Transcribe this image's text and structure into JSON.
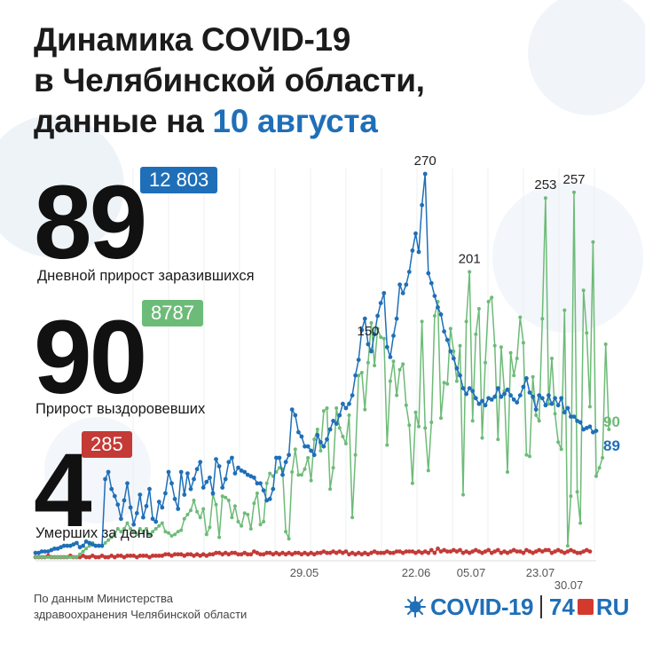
{
  "title": {
    "line1": "Динамика COVID-19",
    "line2": "в Челябинской области,",
    "line3_prefix": "данные на ",
    "line3_date": "10 августа"
  },
  "stats": {
    "infected": {
      "value": "89",
      "total": "12 803",
      "label": "Дневной прирост заразившихся"
    },
    "recovered": {
      "value": "90",
      "total": "8787",
      "label": "Прирост выздоровевших"
    },
    "deaths": {
      "value": "4",
      "total": "285",
      "label": "Умерших за день"
    }
  },
  "footer": {
    "source_line1": "По данным Министерства",
    "source_line2": "здравоохранения Челябинской области",
    "logo_covid": "COVID-19",
    "logo_74": "74",
    "logo_ru": "RU"
  },
  "colors": {
    "infected": "#1f6fb8",
    "recovered": "#6dbb78",
    "deaths": "#c43a36",
    "title_accent": "#1f6fb8"
  },
  "chart_data": {
    "type": "line",
    "title": "",
    "xlabel": "",
    "ylabel": "",
    "ylim": [
      0,
      280
    ],
    "x_ticks": [
      "29.05",
      "22.06",
      "05.07",
      "23.07",
      "30.07"
    ],
    "grid": "vertical",
    "peak_labels": [
      {
        "series": "infected",
        "text": "270"
      },
      {
        "series": "infected",
        "text": "150"
      },
      {
        "series": "recovered",
        "text": "201"
      },
      {
        "series": "recovered",
        "text": "253"
      },
      {
        "series": "recovered",
        "text": "257"
      }
    ],
    "end_labels": {
      "recovered": "90",
      "infected": "89"
    },
    "series": [
      {
        "key": "infected",
        "values": [
          3,
          3,
          4,
          4,
          4,
          5,
          6,
          6,
          7,
          8,
          8,
          8,
          9,
          10,
          7,
          8,
          11,
          10,
          9,
          8,
          8,
          8,
          55,
          60,
          48,
          43,
          37,
          27,
          40,
          52,
          35,
          23,
          31,
          44,
          28,
          36,
          48,
          27,
          25,
          39,
          35,
          45,
          60,
          52,
          41,
          34,
          60,
          44,
          59,
          48,
          55,
          62,
          67,
          49,
          53,
          56,
          45,
          69,
          64,
          49,
          55,
          67,
          70,
          59,
          63,
          61,
          60,
          58,
          57,
          56,
          52,
          52,
          47,
          40,
          41,
          48,
          70,
          70,
          58,
          67,
          72,
          104,
          100,
          88,
          85,
          78,
          78,
          75,
          72,
          86,
          81,
          78,
          83,
          90,
          96,
          94,
          100,
          108,
          105,
          108,
          114,
          128,
          139,
          160,
          168,
          150,
          145,
          157,
          170,
          179,
          186,
          148,
          141,
          156,
          168,
          192,
          186,
          192,
          201,
          216,
          228,
          215,
          248,
          270,
          200,
          193,
          184,
          176,
          171,
          159,
          153,
          145,
          140,
          133,
          128,
          119,
          115,
          119,
          117,
          112,
          108,
          110,
          107,
          112,
          111,
          113,
          119,
          113,
          115,
          118,
          114,
          111,
          109,
          114,
          120,
          126,
          116,
          113,
          104,
          114,
          112,
          107,
          114,
          108,
          112,
          107,
          112,
          102,
          105,
          99,
          99,
          96,
          95,
          90,
          91,
          92,
          88,
          89
        ]
      },
      {
        "key": "recovered",
        "values": [
          0,
          0,
          0,
          0,
          0,
          0,
          0,
          0,
          0,
          0,
          0,
          0,
          0,
          0,
          2,
          4,
          6,
          8,
          10,
          8,
          8,
          8,
          10,
          12,
          14,
          16,
          20,
          18,
          20,
          24,
          20,
          18,
          16,
          20,
          18,
          20,
          16,
          18,
          20,
          22,
          24,
          18,
          17,
          15,
          16,
          18,
          19,
          27,
          30,
          33,
          40,
          32,
          28,
          34,
          16,
          21,
          44,
          37,
          14,
          43,
          42,
          40,
          28,
          36,
          25,
          22,
          31,
          30,
          20,
          38,
          45,
          23,
          25,
          52,
          59,
          57,
          60,
          63,
          62,
          18,
          13,
          60,
          76,
          58,
          58,
          62,
          70,
          54,
          83,
          90,
          75,
          103,
          105,
          48,
          63,
          105,
          91,
          85,
          80,
          100,
          28,
          72,
          128,
          130,
          104,
          137,
          165,
          135,
          161,
          155,
          154,
          79,
          124,
          138,
          114,
          132,
          136,
          107,
          93,
          52,
          102,
          92,
          166,
          91,
          61,
          95,
          170,
          180,
          98,
          123,
          122,
          161,
          145,
          124,
          149,
          44,
          166,
          201,
          96,
          157,
          175,
          84,
          137,
          180,
          183,
          149,
          83,
          148,
          117,
          60,
          144,
          128,
          140,
          169,
          151,
          72,
          71,
          127,
          100,
          96,
          168,
          253,
          108,
          140,
          101,
          81,
          76,
          174,
          8,
          43,
          257,
          46,
          24,
          188,
          158,
          106,
          222,
          57,
          63,
          70,
          150,
          90
        ]
      },
      {
        "key": "deaths",
        "values": [
          0,
          0,
          0,
          0,
          1,
          0,
          0,
          0,
          0,
          0,
          0,
          1,
          0,
          0,
          0,
          1,
          0,
          0,
          1,
          0,
          0,
          1,
          0,
          0,
          1,
          0,
          1,
          1,
          0,
          1,
          1,
          1,
          0,
          1,
          1,
          1,
          0,
          1,
          1,
          1,
          1,
          2,
          2,
          1,
          2,
          2,
          2,
          1,
          2,
          2,
          1,
          2,
          1,
          2,
          1,
          2,
          2,
          3,
          3,
          2,
          3,
          2,
          3,
          3,
          2,
          2,
          3,
          2,
          2,
          4,
          3,
          2,
          2,
          3,
          3,
          2,
          3,
          2,
          3,
          2,
          3,
          2,
          3,
          3,
          2,
          3,
          2,
          3,
          2,
          3,
          3,
          4,
          3,
          3,
          4,
          3,
          4,
          3,
          4,
          2,
          3,
          2,
          3,
          2,
          3,
          2,
          3,
          4,
          3,
          3,
          3,
          4,
          3,
          3,
          4,
          4,
          3,
          4,
          4,
          4,
          3,
          4,
          3,
          4,
          3,
          5,
          3,
          6,
          4,
          5,
          4,
          4,
          5,
          4,
          5,
          3,
          4,
          3,
          4,
          5,
          4,
          3,
          4,
          5,
          3,
          4,
          5,
          3,
          4,
          3,
          4,
          5,
          4,
          4,
          3,
          5,
          4,
          3,
          4,
          5,
          4,
          5,
          5,
          3,
          4,
          5,
          4,
          3,
          4,
          5,
          4,
          3,
          3,
          4,
          5,
          4
        ]
      }
    ]
  }
}
